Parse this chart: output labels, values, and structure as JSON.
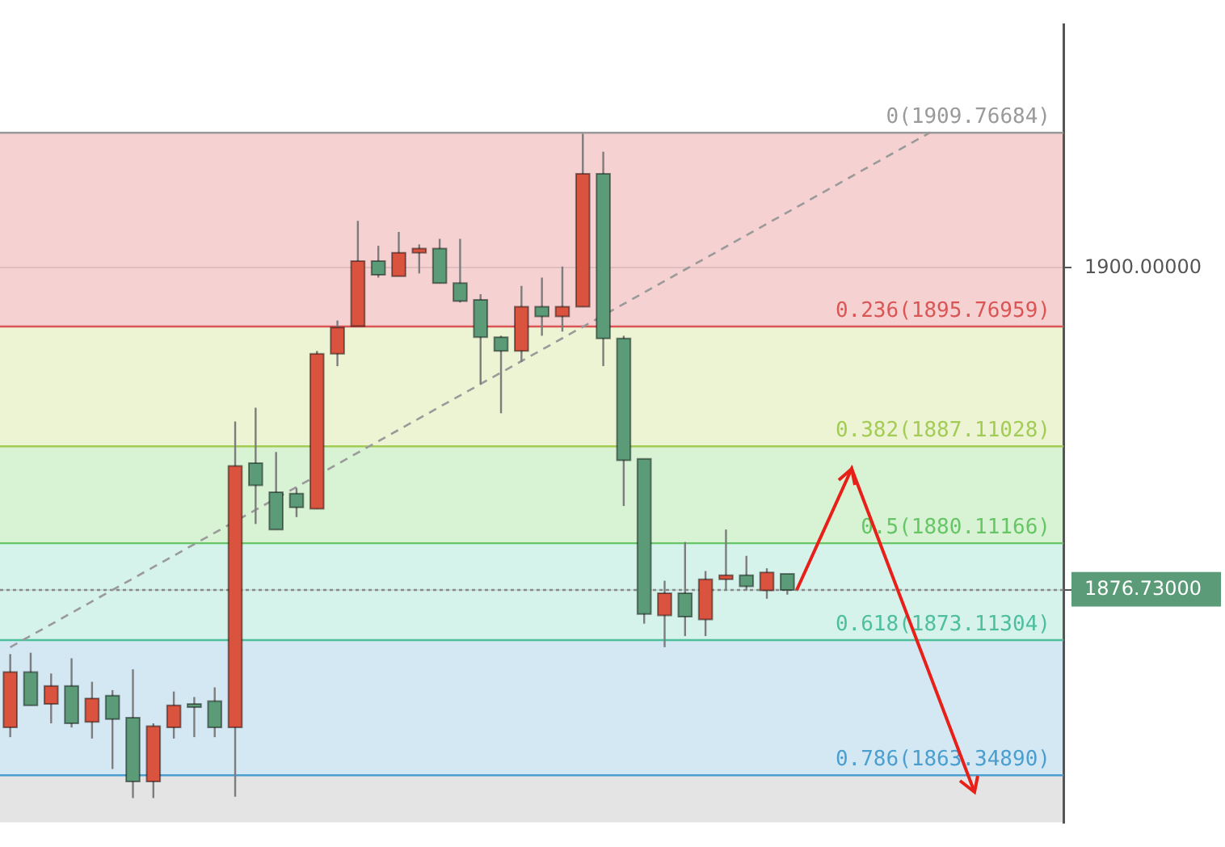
{
  "chart_data": {
    "type": "candlestick",
    "categories": [
      null,
      null,
      null,
      null,
      null,
      null,
      null,
      null,
      null,
      null,
      null,
      null,
      null,
      null,
      null,
      null,
      null,
      null,
      null,
      null,
      null,
      null,
      null,
      null,
      null,
      null,
      null,
      null,
      null,
      null,
      null,
      null,
      null,
      null,
      null,
      null,
      null,
      null,
      null,
      null,
      null,
      null,
      null,
      null,
      null,
      null,
      null,
      null,
      null,
      null,
      null,
      null
    ],
    "ohlc": [
      [
        1866.8,
        1872.1,
        1866.1,
        1870.8
      ],
      [
        1870.8,
        1872.2,
        1868.4,
        1868.4
      ],
      [
        1868.5,
        1870.7,
        1867.1,
        1869.8
      ],
      [
        1869.8,
        1871.8,
        1866.8,
        1867.1
      ],
      [
        1867.2,
        1870.1,
        1866.0,
        1868.9
      ],
      [
        1869.1,
        1869.5,
        1863.8,
        1867.4
      ],
      [
        1867.5,
        1871.0,
        1861.7,
        1862.9
      ],
      [
        1862.9,
        1867.1,
        1861.7,
        1866.9
      ],
      [
        1866.8,
        1869.4,
        1866.0,
        1868.4
      ],
      [
        1868.5,
        1869.0,
        1866.1,
        1868.4
      ],
      [
        1868.7,
        1869.7,
        1866.1,
        1866.8
      ],
      [
        1866.8,
        1888.9,
        1861.8,
        1885.7
      ],
      [
        1885.9,
        1889.9,
        1881.5,
        1884.3
      ],
      [
        1883.8,
        1886.7,
        1881.1,
        1881.1
      ],
      [
        1883.7,
        1884.1,
        1882.0,
        1882.7
      ],
      [
        1882.6,
        1894.0,
        1882.6,
        1893.8
      ],
      [
        1893.8,
        1896.2,
        1892.9,
        1895.7
      ],
      [
        1895.8,
        1903.4,
        1895.8,
        1900.5
      ],
      [
        1900.5,
        1901.6,
        1899.3,
        1899.5
      ],
      [
        1899.4,
        1902.6,
        1899.4,
        1901.1
      ],
      [
        1901.1,
        1901.7,
        1899.6,
        1901.4
      ],
      [
        1901.4,
        1902.1,
        1898.9,
        1898.9
      ],
      [
        1898.9,
        1902.1,
        1897.5,
        1897.6
      ],
      [
        1897.7,
        1898.1,
        1891.6,
        1895.0
      ],
      [
        1895.0,
        1895.1,
        1889.5,
        1894.0
      ],
      [
        1894.0,
        1898.7,
        1893.2,
        1897.2
      ],
      [
        1897.2,
        1899.3,
        1895.1,
        1896.5
      ],
      [
        1896.5,
        1900.1,
        1895.4,
        1897.2
      ],
      [
        1897.2,
        1909.7,
        1897.2,
        1906.8
      ],
      [
        1906.8,
        1908.4,
        1892.9,
        1894.9
      ],
      [
        1894.9,
        1895.1,
        1882.8,
        1886.1
      ],
      [
        1886.2,
        1886.2,
        1874.3,
        1875.0
      ],
      [
        1874.9,
        1877.4,
        1872.6,
        1876.5
      ],
      [
        1876.5,
        1880.2,
        1873.4,
        1874.8
      ],
      [
        1874.6,
        1878.1,
        1873.4,
        1877.5
      ],
      [
        1877.5,
        1881.1,
        1876.7,
        1877.8
      ],
      [
        1877.8,
        1879.2,
        1876.7,
        1877.0
      ],
      [
        1876.7,
        1878.3,
        1876.1,
        1878.0
      ],
      [
        1877.9,
        1877.9,
        1876.4,
        1876.73
      ],
      null,
      null,
      null,
      null,
      null,
      null,
      null,
      null,
      null,
      null,
      null,
      null,
      null
    ],
    "colors": [
      "#d9533f",
      "#5b9b78",
      "#d9533f",
      "#5b9b78",
      "#d9533f",
      "#5b9b78",
      "#5b9b78",
      "#d9533f",
      "#d9533f",
      "#5b9b78",
      "#5b9b78",
      "#d9533f",
      "#5b9b78",
      "#5b9b78",
      "#5b9b78",
      "#d9533f",
      "#d9533f",
      "#d9533f",
      "#5b9b78",
      "#d9533f",
      "#d9533f",
      "#5b9b78",
      "#5b9b78",
      "#5b9b78",
      "#5b9b78",
      "#d9533f",
      "#5b9b78",
      "#d9533f",
      "#d9533f",
      "#5b9b78",
      "#5b9b78",
      "#5b9b78",
      "#d9533f",
      "#5b9b78",
      "#d9533f",
      "#d9533f",
      "#5b9b78",
      "#d9533f",
      "#5b9b78",
      null,
      null,
      null,
      null,
      null,
      null,
      null,
      null,
      null,
      null,
      null,
      null,
      null
    ],
    "series": [
      {
        "type": "line",
        "color": "#9a9a9a",
        "line_style": "dashed",
        "values": [
          1872.6,
          null,
          null,
          null,
          null,
          null,
          null,
          null,
          null,
          null,
          null,
          null,
          null,
          null,
          null,
          null,
          null,
          null,
          null,
          null,
          null,
          null,
          null,
          null,
          null,
          null,
          null,
          null,
          null,
          null,
          null,
          null,
          null,
          null,
          null,
          null,
          null,
          null,
          null,
          null,
          null,
          null,
          null,
          null,
          null,
          1909.8,
          null,
          null,
          null,
          null,
          null,
          null
        ]
      }
    ],
    "ylim": [
      1859.94,
      1917.58
    ],
    "yticks": [
      {
        "value": 1900,
        "label": "1900.00000"
      },
      {
        "value": 1876.73,
        "label": "1876.73000"
      }
    ],
    "tick_labels": "y",
    "grid": "y",
    "bands": [
      {
        "axis": "y",
        "from": 1895.76959,
        "to": 1909.76684,
        "color": "#f5d1d1"
      },
      {
        "axis": "y",
        "from": 1887.11028,
        "to": 1895.76959,
        "color": "#ecf4d4"
      },
      {
        "axis": "y",
        "from": 1880.11166,
        "to": 1887.11028,
        "color": "#d8f2d4"
      },
      {
        "axis": "y",
        "from": 1873.11304,
        "to": 1880.11166,
        "color": "#d5f2eb"
      },
      {
        "axis": "y",
        "from": 1863.3489,
        "to": 1873.11304,
        "color": "#d4e8f3"
      },
      {
        "axis": "y",
        "from": 1859.94,
        "to": 1863.3489,
        "color": "#e4e4e4"
      }
    ],
    "ref_lines": [
      {
        "axis": "y",
        "value": 1909.76684,
        "label": "0(1909.76684)",
        "color": "#9a9a9a"
      },
      {
        "axis": "y",
        "value": 1895.76959,
        "label": "0.236(1895.76959)",
        "color": "#db5555"
      },
      {
        "axis": "y",
        "value": 1887.11028,
        "label": "0.382(1887.11028)",
        "color": "#a3cc55"
      },
      {
        "axis": "y",
        "value": 1880.11166,
        "label": "0.5(1880.11166)",
        "color": "#66c666"
      },
      {
        "axis": "y",
        "value": 1873.11304,
        "label": "0.618(1873.11304)",
        "color": "#4dbf9c"
      },
      {
        "axis": "y",
        "value": 1863.3489,
        "label": "0.786(1863.34890)",
        "color": "#4a9fd0"
      },
      {
        "axis": "y",
        "value": 1876.73,
        "color": "#8a8a8a",
        "line_style": "dotted"
      }
    ]
  }
}
